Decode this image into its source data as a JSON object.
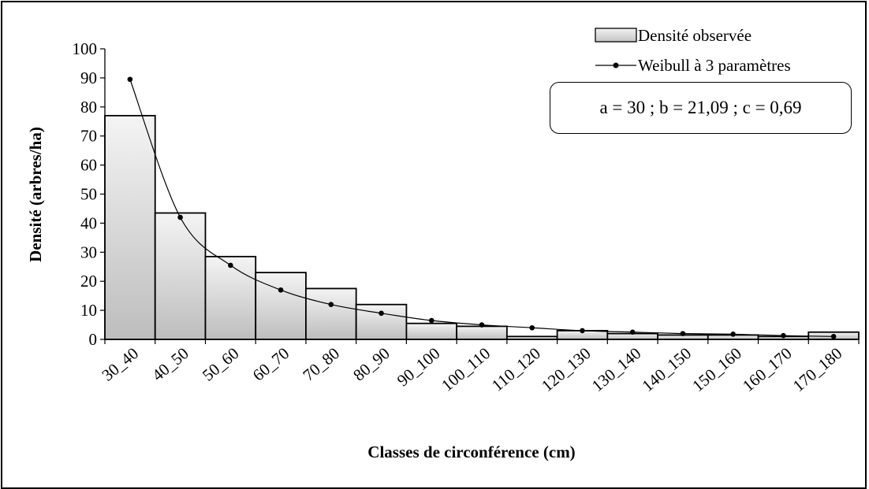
{
  "chart_data": {
    "type": "bar",
    "categories": [
      "30_40",
      "40_50",
      "50_60",
      "60_70",
      "70_80",
      "80_90",
      "90_100",
      "100_110",
      "110_120",
      "120_130",
      "130_140",
      "140_150",
      "150_160",
      "160_170",
      "170_180"
    ],
    "series": [
      {
        "name": "Densité observée",
        "kind": "bar",
        "values": [
          77,
          43.5,
          28.5,
          23,
          17.5,
          12,
          5.5,
          4.5,
          1,
          3,
          2,
          1.5,
          1.5,
          1,
          2.5
        ]
      },
      {
        "name": "Weibull à 3 paramètres",
        "kind": "line",
        "values": [
          89.5,
          42,
          25.5,
          17,
          12,
          9,
          6.5,
          5,
          4,
          3,
          2.5,
          2,
          1.8,
          1.3,
          1
        ]
      }
    ],
    "xlabel": "Classes de circonférence (cm)",
    "ylabel": "Densité (arbres/ha)",
    "ylim": [
      0,
      100
    ],
    "yticks": [
      0,
      10,
      20,
      30,
      40,
      50,
      60,
      70,
      80,
      90,
      100
    ],
    "grid": false,
    "legend_position": "top-right",
    "annotation": "a = 30 ; b = 21,09 ; c = 0,69"
  }
}
